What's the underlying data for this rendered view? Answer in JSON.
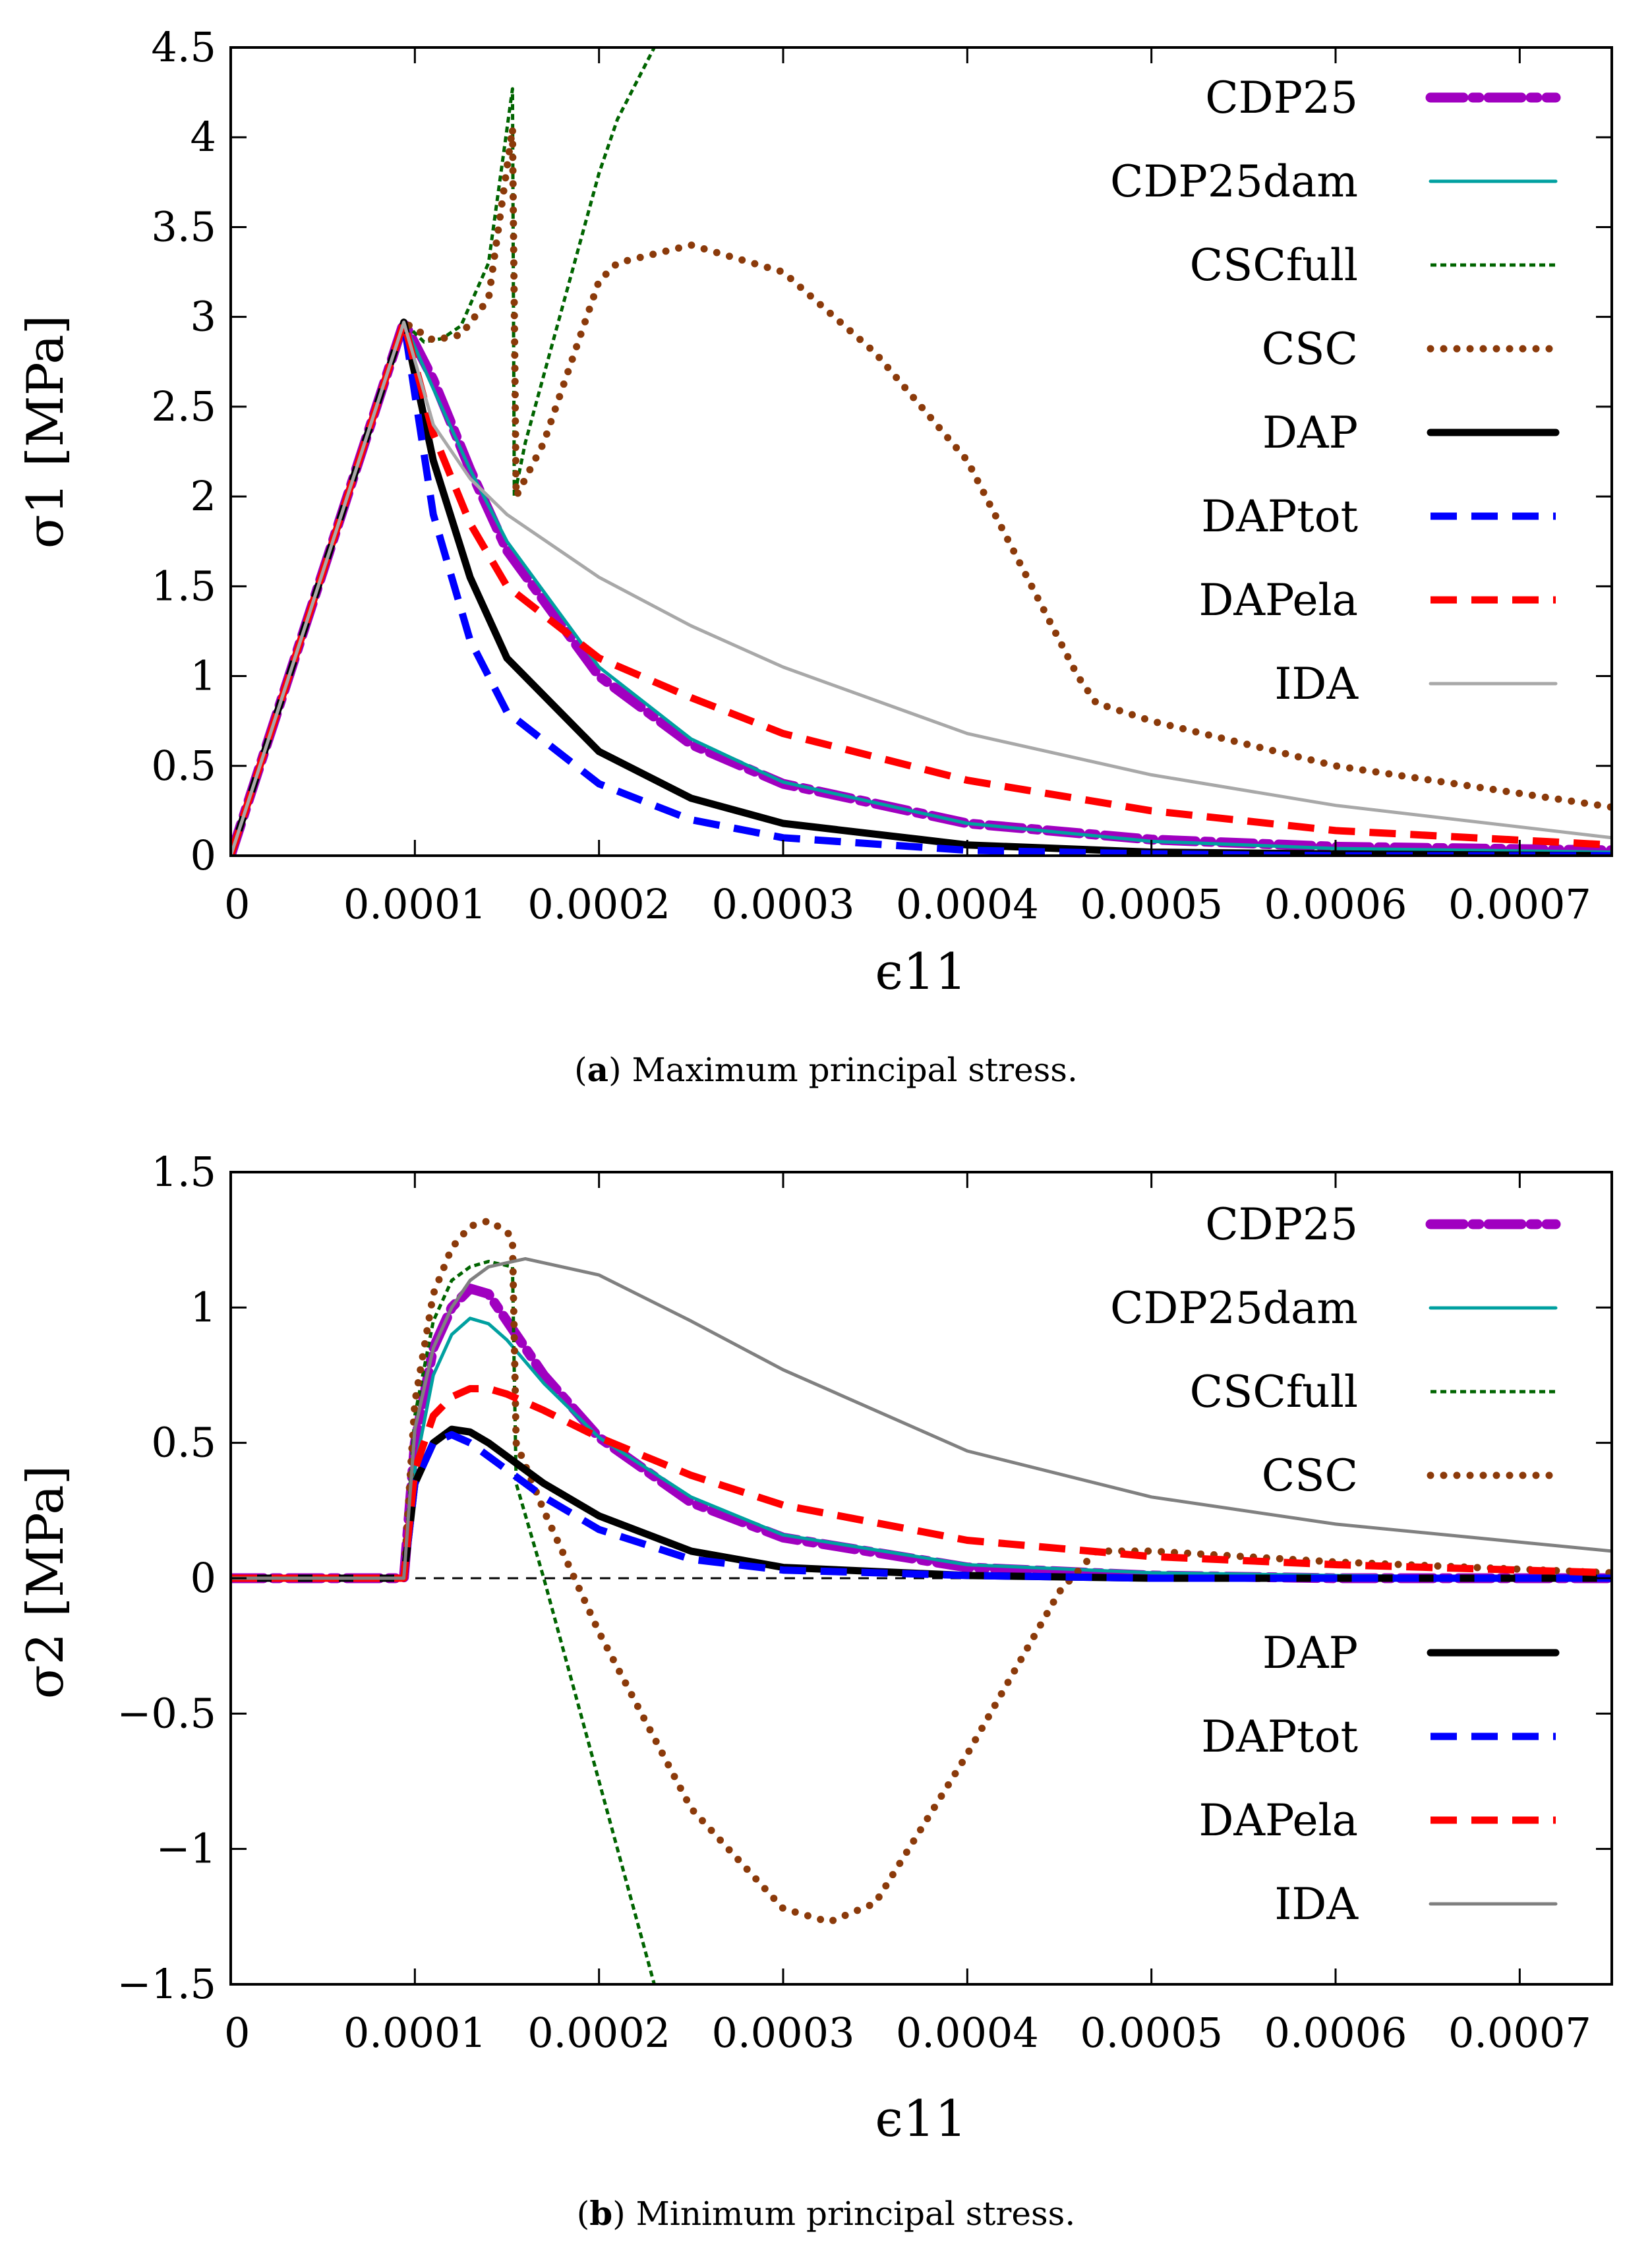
{
  "chart_data": [
    {
      "type": "line",
      "title": "",
      "caption": {
        "label": "a",
        "text": "Maximum principal stress."
      },
      "xlabel": "ϵ11",
      "ylabel": "σ1 [MPa]",
      "xlim": [
        0,
        0.00075
      ],
      "ylim": [
        0,
        4.5
      ],
      "xticks": [
        0,
        0.0001,
        0.0002,
        0.0003,
        0.0004,
        0.0005,
        0.0006,
        0.0007
      ],
      "xtick_labels": [
        "0",
        "0.0001",
        "0.0002",
        "0.0003",
        "0.0004",
        "0.0005",
        "0.0006",
        "0.0007"
      ],
      "yticks": [
        0,
        0.5,
        1,
        1.5,
        2,
        2.5,
        3,
        3.5,
        4,
        4.5
      ],
      "ytick_labels": [
        "0",
        "0.5",
        "1",
        "1.5",
        "2",
        "2.5",
        "3",
        "3.5",
        "4",
        "4.5"
      ],
      "legend_placement": "top-right",
      "legend_order": [
        "CDP25",
        "CDP25dam",
        "CSCfull",
        "CSC",
        "DAP",
        "DAPtot",
        "DAPela",
        "IDA"
      ],
      "zero_line": false,
      "series": [
        {
          "name": "CDP25",
          "color": "#a000c0",
          "style": "dashdot-thick",
          "x": [
            0,
            9.4e-05,
            0.00011,
            0.00013,
            0.00015,
            0.0002,
            0.00025,
            0.0003,
            0.0004,
            0.0005,
            0.0006,
            0.00075
          ],
          "y": [
            0,
            2.97,
            2.65,
            2.15,
            1.7,
            1.0,
            0.62,
            0.4,
            0.18,
            0.09,
            0.05,
            0.03
          ]
        },
        {
          "name": "CDP25dam",
          "color": "#00a0a0",
          "style": "solid-thin",
          "x": [
            0,
            9.4e-05,
            0.00011,
            0.00013,
            0.00015,
            0.0002,
            0.00025,
            0.0003,
            0.0004,
            0.0005,
            0.0006,
            0.00075
          ],
          "y": [
            0,
            2.97,
            2.6,
            2.15,
            1.75,
            1.05,
            0.65,
            0.41,
            0.18,
            0.08,
            0.04,
            0.02
          ]
        },
        {
          "name": "CSCfull",
          "color": "#006400",
          "style": "dotted-thin",
          "x": [
            0,
            9.4e-05,
            0.000105,
            0.000115,
            0.000125,
            0.00014,
            0.000153,
            0.000154,
            0.00016,
            0.00018,
            0.0002,
            0.00021,
            0.00023
          ],
          "y": [
            0,
            2.97,
            2.86,
            2.88,
            2.95,
            3.3,
            4.27,
            2.0,
            2.3,
            3.05,
            3.8,
            4.1,
            4.5
          ]
        },
        {
          "name": "CSC",
          "color": "#8b3a0a",
          "style": "dotted-thick",
          "x": [
            0,
            9.4e-05,
            0.00011,
            0.000125,
            0.00014,
            0.000153,
            0.000155,
            0.00017,
            0.0002,
            0.00021,
            0.00025,
            0.0003,
            0.00035,
            0.0004,
            0.00046,
            0.00047,
            0.0005,
            0.0006,
            0.00075
          ],
          "y": [
            0,
            2.97,
            2.87,
            2.9,
            3.1,
            4.05,
            2.0,
            2.3,
            3.2,
            3.3,
            3.4,
            3.25,
            2.8,
            2.2,
            1.0,
            0.85,
            0.75,
            0.5,
            0.27
          ]
        },
        {
          "name": "DAP",
          "color": "#000000",
          "style": "solid-thick",
          "x": [
            0,
            9.4e-05,
            0.00011,
            0.00013,
            0.00015,
            0.0002,
            0.00025,
            0.0003,
            0.0004,
            0.0005,
            0.0006,
            0.00075
          ],
          "y": [
            0,
            2.97,
            2.2,
            1.55,
            1.1,
            0.58,
            0.32,
            0.18,
            0.06,
            0.02,
            0.01,
            0.0
          ]
        },
        {
          "name": "DAPtot",
          "color": "#0000ff",
          "style": "dashed-thick",
          "x": [
            0,
            9.4e-05,
            0.00011,
            0.00013,
            0.00015,
            0.0002,
            0.00025,
            0.0003,
            0.0004,
            0.0005,
            0.0006,
            0.00075
          ],
          "y": [
            0,
            2.97,
            1.9,
            1.2,
            0.8,
            0.4,
            0.2,
            0.1,
            0.03,
            0.01,
            0.0,
            0.0
          ]
        },
        {
          "name": "DAPela",
          "color": "#ff0000",
          "style": "dashed-thick",
          "x": [
            0,
            9.4e-05,
            0.00011,
            0.00013,
            0.00015,
            0.0002,
            0.00025,
            0.0003,
            0.0004,
            0.0005,
            0.0006,
            0.00075
          ],
          "y": [
            0,
            2.97,
            2.35,
            1.85,
            1.5,
            1.1,
            0.88,
            0.68,
            0.42,
            0.25,
            0.14,
            0.06
          ]
        },
        {
          "name": "IDA",
          "color": "#a8a8a8",
          "style": "solid-thin",
          "x": [
            0,
            9.4e-05,
            0.00011,
            0.00013,
            0.00015,
            0.0002,
            0.00025,
            0.0003,
            0.0004,
            0.0005,
            0.0006,
            0.00075
          ],
          "y": [
            0,
            2.97,
            2.4,
            2.1,
            1.9,
            1.55,
            1.28,
            1.05,
            0.68,
            0.45,
            0.28,
            0.1
          ]
        }
      ]
    },
    {
      "type": "line",
      "title": "",
      "caption": {
        "label": "b",
        "text": "Minimum principal stress."
      },
      "xlabel": "ϵ11",
      "ylabel": "σ2 [MPa]",
      "xlim": [
        0,
        0.00075
      ],
      "ylim": [
        -1.5,
        1.5
      ],
      "xticks": [
        0,
        0.0001,
        0.0002,
        0.0003,
        0.0004,
        0.0005,
        0.0006,
        0.0007
      ],
      "xtick_labels": [
        "0",
        "0.0001",
        "0.0002",
        "0.0003",
        "0.0004",
        "0.0005",
        "0.0006",
        "0.0007"
      ],
      "yticks": [
        -1.5,
        -1,
        -0.5,
        0,
        0.5,
        1,
        1.5
      ],
      "ytick_labels": [
        "−1.5",
        "−1",
        "−0.5",
        "0",
        "0.5",
        "1",
        "1.5"
      ],
      "legend_placement": "top-right (first four), bottom-right (last four)",
      "legend_order": [
        "CDP25",
        "CDP25dam",
        "CSCfull",
        "CSC",
        "DAP",
        "DAPtot",
        "DAPela",
        "IDA"
      ],
      "zero_line": true,
      "series": [
        {
          "name": "CDP25",
          "color": "#a000c0",
          "style": "dashdot-thick",
          "x": [
            0,
            9.4e-05,
            0.0001,
            0.00011,
            0.00012,
            0.00013,
            0.00014,
            0.00015,
            0.00017,
            0.0002,
            0.00025,
            0.0003,
            0.0004,
            0.0005,
            0.0006,
            0.00075
          ],
          "y": [
            0,
            0,
            0.5,
            0.85,
            1.0,
            1.07,
            1.05,
            0.95,
            0.75,
            0.52,
            0.28,
            0.15,
            0.04,
            0.01,
            0.0,
            0.0
          ]
        },
        {
          "name": "CDP25dam",
          "color": "#00a0a0",
          "style": "solid-thin",
          "x": [
            0,
            9.4e-05,
            0.0001,
            0.00011,
            0.00012,
            0.00013,
            0.00014,
            0.00015,
            0.00017,
            0.0002,
            0.00025,
            0.0003,
            0.0004,
            0.0005,
            0.0006,
            0.00075
          ],
          "y": [
            0,
            0,
            0.4,
            0.75,
            0.9,
            0.96,
            0.94,
            0.88,
            0.72,
            0.52,
            0.3,
            0.16,
            0.05,
            0.02,
            0.01,
            0.0
          ]
        },
        {
          "name": "CSCfull",
          "color": "#006400",
          "style": "dotted-thin",
          "x": [
            0,
            9.4e-05,
            0.0001,
            0.00011,
            0.00012,
            0.00013,
            0.00014,
            0.000153,
            0.000155,
            0.00017,
            0.0002,
            0.00023
          ],
          "y": [
            0,
            0,
            0.6,
            0.95,
            1.1,
            1.15,
            1.17,
            1.15,
            0.35,
            0.0,
            -0.75,
            -1.5
          ]
        },
        {
          "name": "CSC",
          "color": "#8b3a0a",
          "style": "dotted-thick",
          "x": [
            0,
            9.4e-05,
            0.0001,
            0.00011,
            0.00012,
            0.00013,
            0.00014,
            0.00015,
            0.000153,
            0.000155,
            0.00017,
            0.0002,
            0.00025,
            0.0003,
            0.000325,
            0.00035,
            0.0004,
            0.00045,
            0.00047,
            0.0005,
            0.0006,
            0.00075
          ],
          "y": [
            0,
            0,
            0.65,
            1.05,
            1.22,
            1.3,
            1.32,
            1.28,
            1.25,
            0.5,
            0.25,
            -0.2,
            -0.85,
            -1.22,
            -1.27,
            -1.2,
            -0.65,
            -0.05,
            0.1,
            0.1,
            0.06,
            0.02
          ]
        },
        {
          "name": "DAP",
          "color": "#000000",
          "style": "solid-thick",
          "x": [
            0,
            9.4e-05,
            0.0001,
            0.00011,
            0.00012,
            0.00013,
            0.00014,
            0.00015,
            0.00017,
            0.0002,
            0.00025,
            0.0003,
            0.0004,
            0.0005,
            0.00075
          ],
          "y": [
            0,
            0,
            0.35,
            0.5,
            0.55,
            0.54,
            0.5,
            0.45,
            0.35,
            0.23,
            0.1,
            0.04,
            0.01,
            0.0,
            0.0
          ]
        },
        {
          "name": "DAPtot",
          "color": "#0000ff",
          "style": "dashed-thick",
          "x": [
            0,
            9.4e-05,
            0.0001,
            0.00011,
            0.00012,
            0.00013,
            0.00014,
            0.00015,
            0.00017,
            0.0002,
            0.00025,
            0.0003,
            0.0004,
            0.0005,
            0.00075
          ],
          "y": [
            0,
            0,
            0.35,
            0.5,
            0.53,
            0.5,
            0.45,
            0.4,
            0.3,
            0.18,
            0.07,
            0.03,
            0.01,
            0.0,
            0.0
          ]
        },
        {
          "name": "DAPela",
          "color": "#ff0000",
          "style": "dashed-thick",
          "x": [
            0,
            9.4e-05,
            0.0001,
            0.00011,
            0.00012,
            0.00013,
            0.00014,
            0.00015,
            0.00017,
            0.0002,
            0.00025,
            0.0003,
            0.0004,
            0.0005,
            0.0006,
            0.00075
          ],
          "y": [
            0,
            0,
            0.4,
            0.6,
            0.67,
            0.7,
            0.7,
            0.68,
            0.62,
            0.52,
            0.38,
            0.27,
            0.14,
            0.08,
            0.05,
            0.02
          ]
        },
        {
          "name": "IDA",
          "color": "#808080",
          "style": "solid-thin",
          "x": [
            0,
            9.4e-05,
            0.0001,
            0.00011,
            0.00012,
            0.00013,
            0.00014,
            0.00016,
            0.0002,
            0.00025,
            0.0003,
            0.0004,
            0.0005,
            0.0006,
            0.00075
          ],
          "y": [
            0,
            0,
            0.55,
            0.85,
            1.0,
            1.1,
            1.15,
            1.18,
            1.12,
            0.95,
            0.77,
            0.47,
            0.3,
            0.2,
            0.1
          ]
        }
      ]
    }
  ]
}
